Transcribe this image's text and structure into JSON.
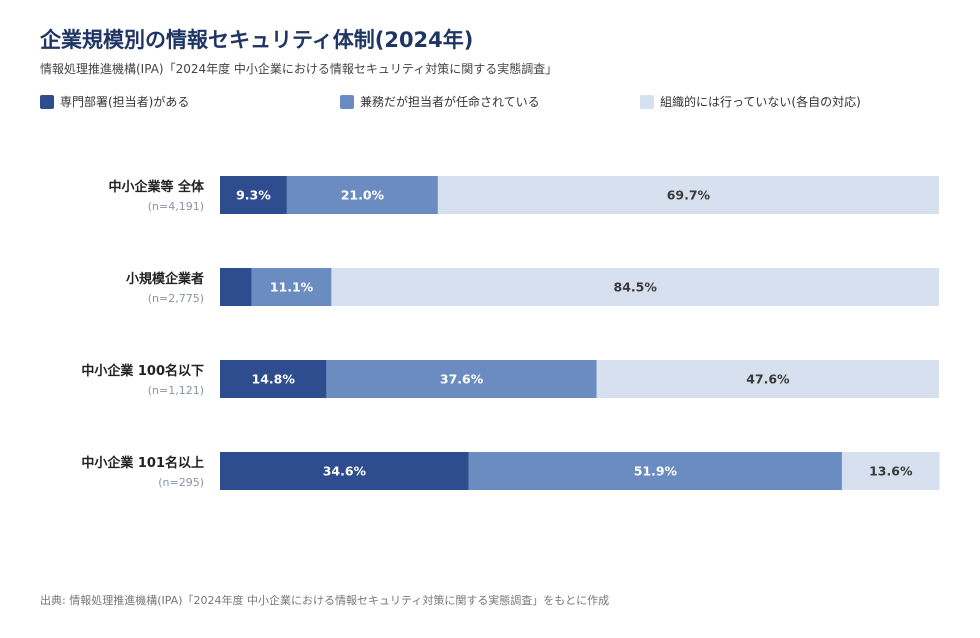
{
  "title": "企業規模別の情報セキュリティ体制(2024年)",
  "subtitle": "情報処理推進機構(IPA)「2024年度 中小企業における情報セキュリティ対策に関する実態調査」",
  "footer": "出典: 情報処理推進機構(IPA)「2024年度 中小企業における情報セキュリティ対策に関する実態調査」をもとに作成",
  "chart_data": {
    "type": "bar",
    "orientation": "horizontal",
    "stacked": true,
    "unit": "%",
    "xlim": [
      0,
      100
    ],
    "grid": false,
    "legend_position": "top",
    "categories": [
      "中小企業等 全体",
      "小規模企業者",
      "中小企業 100名以下",
      "中小企業 101名以上"
    ],
    "sample_sizes": [
      "(n=4,191)",
      "(n=2,775)",
      "(n=1,121)",
      "(n=295)"
    ],
    "series": [
      {
        "name": "専門部署(担当者)がある",
        "color": "#2e4d8f",
        "label_color": "#ffffff",
        "values": [
          9.3,
          4.4,
          14.8,
          34.6
        ]
      },
      {
        "name": "兼務だが担当者が任命されている",
        "color": "#6a8cc1",
        "label_color": "#ffffff",
        "values": [
          21.0,
          11.1,
          37.6,
          51.9
        ]
      },
      {
        "name": "組織的には行っていない(各自の対応)",
        "color": "#d7e0ef",
        "label_color": "#3a3a3a",
        "values": [
          69.7,
          84.5,
          47.6,
          13.6
        ]
      }
    ],
    "data_labels": [
      [
        "9.3%",
        "21.0%",
        "69.7%"
      ],
      [
        "",
        "11.1%",
        "84.5%"
      ],
      [
        "14.8%",
        "37.6%",
        "47.6%"
      ],
      [
        "34.6%",
        "51.9%",
        "13.6%"
      ]
    ]
  }
}
